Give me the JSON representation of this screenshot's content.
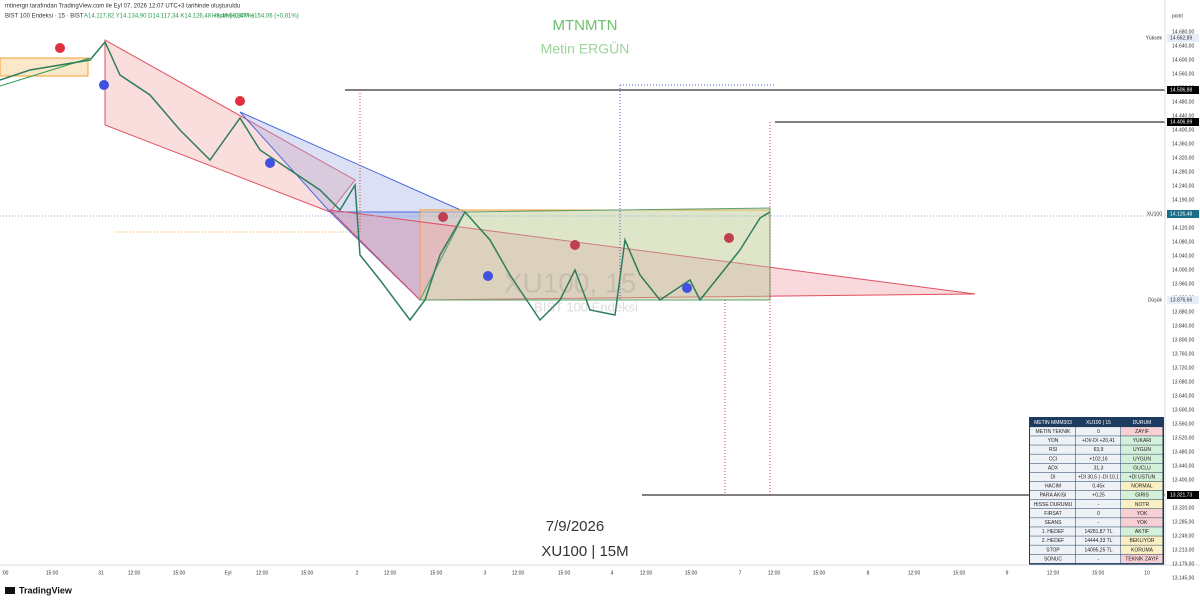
{
  "header": {
    "credit": "mtinergn tarafından TradingView.com ile Eyl 07, 2026 12:07 UTC+3 tarihinde oluşturuldu",
    "symbol": "BIST 100 Endeksi · 15 · BIST",
    "ohlc": "A14.117,82  Y14.134,90  D14.117,34  K14.126,48  +9,49 (+0,07%)",
    "volume": "Hacim68,84M  +154,06 (+0,81%)"
  },
  "watermark": {
    "title": "MTNMTN",
    "author": "Metin ERGÜN",
    "symbol": "XU100, 15",
    "name": "BIST 100 Endeksi",
    "date": "7/9/2026",
    "frame": "XU100 | 15M"
  },
  "price_axis": {
    "unit": "point",
    "labels": [
      "14.680,00",
      "14.640,00",
      "14.600,00",
      "14.560,00",
      "14.520,00",
      "14.480,00",
      "14.440,00",
      "14.400,00",
      "14.360,00",
      "14.320,00",
      "14.280,00",
      "14.240,00",
      "14.190,00",
      "14.160,00",
      "14.120,00",
      "14.080,00",
      "14.040,00",
      "14.000,00",
      "13.960,00",
      "13.920,00",
      "13.880,00",
      "13.840,00",
      "13.800,00",
      "13.760,00",
      "13.720,00",
      "13.680,00",
      "13.640,00",
      "13.600,00",
      "13.560,00",
      "13.520,00",
      "13.480,00",
      "13.440,00",
      "13.400,00",
      "13.360,00",
      "13.320,00",
      "13.285,00",
      "13.249,00",
      "13.213,00",
      "13.179,00",
      "13.145,00"
    ],
    "badges": {
      "high_label": "Yüksek",
      "high": "14.662,89",
      "level1": "14.506,88",
      "level2": "14.406,99",
      "last_symbol": "XU100",
      "last": "14.126,48",
      "countdown": "07:56",
      "low_label": "Düşük",
      "low": "13.876,66",
      "level3": "13.321,73"
    }
  },
  "time_axis": [
    ":00",
    "15:00",
    "31",
    "12:00",
    "15:00",
    "Eyl",
    "12:00",
    "15:00",
    "2",
    "12:00",
    "15:00",
    "3",
    "12:00",
    "15:00",
    "4",
    "12:00",
    "15:00",
    "7",
    "12:00",
    "15:00",
    "8",
    "12:00",
    "15:00",
    "9",
    "12:00",
    "15:00",
    "10"
  ],
  "table": {
    "header": [
      "METIN MMM303",
      "XU100 | 15",
      "DURUM"
    ],
    "rows": [
      [
        "METIN TEKNIK",
        "0",
        "ZAYIF"
      ],
      [
        "YON",
        "+DI/-DI +20,41",
        "YUKARI"
      ],
      [
        "RSI",
        "63,9",
        "UYGUN"
      ],
      [
        "CCI",
        "+102,16",
        "UYGUN"
      ],
      [
        "ADX",
        "31,3",
        "GUCLU"
      ],
      [
        "DI",
        "+DI 30,5 | -DI 10,1",
        "+DI USTUN"
      ],
      [
        "HACIM",
        "0,45x",
        "NORMAL"
      ],
      [
        "PARA AKISI",
        "+0,25",
        "GIRIS"
      ],
      [
        "HISSE DURUMU",
        "-",
        "NOTR"
      ],
      [
        "FIRSAT",
        "0",
        "YOK"
      ],
      [
        "SEANS",
        "-",
        "YOK"
      ],
      [
        "1. HEDEF",
        "14281,87 TL",
        "AKTIF"
      ],
      [
        "2. HEDEF",
        "14444,33 TL",
        "BEKLIYOR"
      ],
      [
        "STOP",
        "14095,25 TL",
        "KORUMA"
      ],
      [
        "SONUC",
        "-",
        "TEKNIK ZAYIF"
      ]
    ]
  },
  "footer": {
    "brand": "TradingView"
  }
}
